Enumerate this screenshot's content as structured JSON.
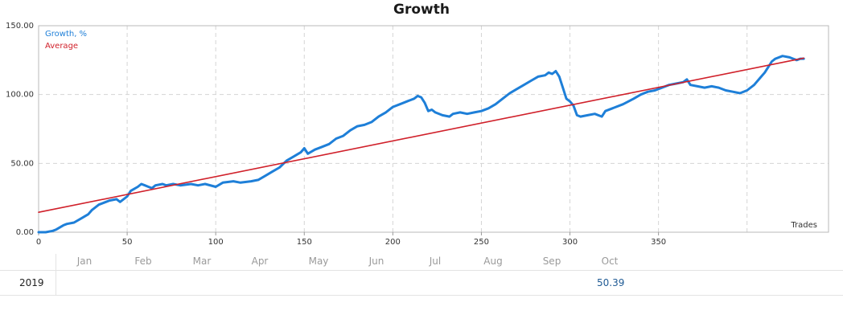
{
  "title": "Growth",
  "chart_data": {
    "type": "line",
    "xlabel": "Trades",
    "ylabel": "",
    "xlim": [
      0,
      446
    ],
    "ylim": [
      0,
      150
    ],
    "x_ticks": [
      "0",
      "50",
      "100",
      "150",
      "200",
      "250",
      "300",
      "350"
    ],
    "y_ticks": [
      "0.00",
      "50.00",
      "100.00",
      "150.00"
    ],
    "grid": true,
    "legend": "top-left",
    "series": [
      {
        "name": "Growth, %",
        "color": "#1e7fd8",
        "x": [
          0,
          4,
          8,
          10,
          14,
          16,
          20,
          24,
          28,
          30,
          34,
          38,
          40,
          44,
          46,
          50,
          52,
          56,
          58,
          60,
          62,
          64,
          66,
          70,
          72,
          76,
          80,
          86,
          90,
          94,
          100,
          104,
          110,
          114,
          120,
          124,
          128,
          132,
          136,
          140,
          144,
          148,
          150,
          152,
          156,
          160,
          164,
          168,
          172,
          176,
          180,
          184,
          188,
          192,
          196,
          200,
          204,
          208,
          212,
          214,
          216,
          218,
          220,
          222,
          224,
          228,
          232,
          234,
          238,
          242,
          246,
          250,
          254,
          258,
          262,
          266,
          270,
          274,
          278,
          282,
          286,
          288,
          290,
          292,
          294,
          296,
          298,
          300,
          302,
          304,
          306,
          310,
          314,
          318,
          320,
          324,
          330,
          336,
          340,
          344,
          348,
          352,
          356,
          360,
          364,
          366,
          368,
          372,
          376,
          380,
          384,
          388,
          392,
          396,
          400,
          404,
          408,
          410,
          412,
          414,
          416,
          420,
          424,
          426,
          428,
          430,
          432
        ],
        "y": [
          0,
          0,
          1,
          2,
          5,
          6,
          7,
          10,
          13,
          16,
          20,
          22,
          23,
          24,
          22,
          26,
          30,
          33,
          35,
          34,
          33,
          32,
          34,
          35,
          34,
          35,
          34,
          35,
          34,
          35,
          33,
          36,
          37,
          36,
          37,
          38,
          41,
          44,
          47,
          52,
          55,
          58,
          61,
          57,
          60,
          62,
          64,
          68,
          70,
          74,
          77,
          78,
          80,
          84,
          87,
          91,
          93,
          95,
          97,
          99,
          98,
          94,
          88,
          89,
          87,
          85,
          84,
          86,
          87,
          86,
          87,
          88,
          90,
          93,
          97,
          101,
          104,
          107,
          110,
          113,
          114,
          116,
          115,
          117,
          113,
          105,
          97,
          95,
          92,
          85,
          84,
          85,
          86,
          84,
          88,
          90,
          93,
          97,
          100,
          102,
          103,
          105,
          107,
          108,
          109,
          111,
          107,
          106,
          105,
          106,
          105,
          103,
          102,
          101,
          103,
          107,
          113,
          116,
          120,
          124,
          126,
          128,
          127,
          126,
          125,
          126,
          126
        ]
      },
      {
        "name": "Average",
        "color": "#d0202a",
        "x": [
          0,
          432
        ],
        "y": [
          14.5,
          126.5
        ]
      }
    ]
  },
  "table": {
    "months": [
      "Jan",
      "Feb",
      "Mar",
      "Apr",
      "May",
      "Jun",
      "Jul",
      "Aug",
      "Sep",
      "Oct"
    ],
    "year": "2019",
    "total": "50.39"
  }
}
